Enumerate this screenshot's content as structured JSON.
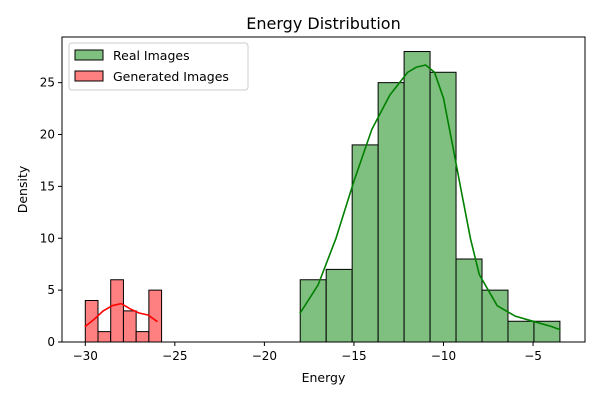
{
  "chart_data": {
    "type": "histogram",
    "title": "Energy Distribution",
    "xlabel": "Energy",
    "ylabel": "Density",
    "xlim": [
      -31.3,
      -2.1
    ],
    "ylim": [
      0,
      29.4
    ],
    "x_ticks": [
      -30,
      -25,
      -20,
      -15,
      -10,
      -5
    ],
    "x_tick_labels": [
      "−30",
      "−25",
      "−20",
      "−15",
      "−10",
      "−5"
    ],
    "y_ticks": [
      0,
      5,
      10,
      15,
      20,
      25
    ],
    "y_tick_labels": [
      "0",
      "5",
      "10",
      "15",
      "20",
      "25"
    ],
    "grid": false,
    "legend": {
      "placement": "top-left",
      "entries": [
        "Real Images",
        "Generated Images"
      ]
    },
    "series": [
      {
        "name": "Real Images",
        "fill": "#7fbf7f",
        "line_color": "#008000",
        "bin_edges": [
          -18.0,
          -16.55,
          -15.1,
          -13.65,
          -12.2,
          -10.75,
          -9.3,
          -7.85,
          -6.4,
          -4.95,
          -3.5
        ],
        "counts": [
          6,
          7,
          19,
          25,
          28,
          26,
          8,
          5,
          2,
          2
        ],
        "kde": {
          "x": [
            -18.0,
            -17.0,
            -16.0,
            -15.0,
            -14.0,
            -13.0,
            -12.0,
            -11.5,
            -11.0,
            -10.5,
            -10.0,
            -9.5,
            -9.0,
            -8.5,
            -8.0,
            -7.0,
            -6.0,
            -5.0,
            -4.0,
            -3.5
          ],
          "y": [
            2.8,
            5.5,
            10.0,
            15.5,
            20.5,
            23.8,
            26.0,
            26.5,
            26.7,
            26.0,
            23.5,
            19.0,
            14.5,
            10.0,
            6.5,
            3.5,
            2.5,
            2.0,
            1.5,
            1.2
          ]
        }
      },
      {
        "name": "Generated Images",
        "fill": "#ff8080",
        "line_color": "#ff0000",
        "bin_edges": [
          -30.0,
          -29.29,
          -28.58,
          -27.87,
          -27.16,
          -26.45,
          -25.74
        ],
        "counts": [
          4,
          1,
          6,
          3,
          1,
          5
        ],
        "kde": {
          "x": [
            -30.0,
            -29.5,
            -29.0,
            -28.5,
            -28.0,
            -27.5,
            -27.0,
            -26.5,
            -26.0
          ],
          "y": [
            1.5,
            2.2,
            3.0,
            3.5,
            3.7,
            3.2,
            2.8,
            2.6,
            2.0
          ]
        }
      }
    ]
  }
}
